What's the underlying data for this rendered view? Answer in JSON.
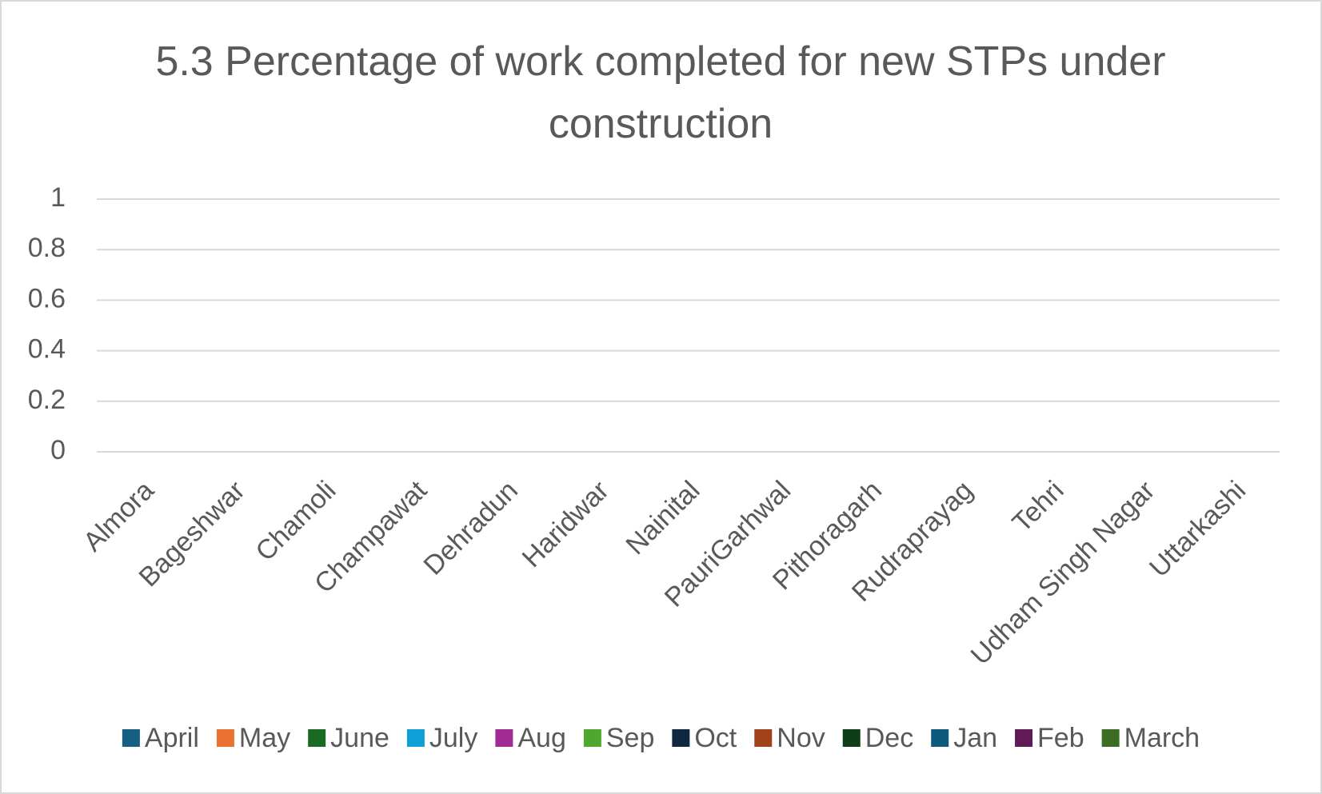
{
  "chart_data": {
    "type": "bar",
    "title": "5.3 Percentage of work completed for new STPs under construction",
    "categories": [
      "Almora",
      "Bageshwar",
      "Chamoli",
      "Champawat",
      "Dehradun",
      "Haridwar",
      "Nainital",
      "PauriGarhwal",
      "Pithoragarh",
      "Rudraprayag",
      "Tehri",
      "Udham Singh Nagar",
      "Uttarkashi"
    ],
    "series": [
      {
        "name": "April",
        "color": "#156082",
        "values": [
          null,
          null,
          null,
          null,
          null,
          null,
          null,
          null,
          null,
          null,
          null,
          null,
          null
        ]
      },
      {
        "name": "May",
        "color": "#e97132",
        "values": [
          null,
          null,
          null,
          null,
          null,
          null,
          null,
          null,
          null,
          null,
          null,
          null,
          null
        ]
      },
      {
        "name": "June",
        "color": "#196b24",
        "values": [
          null,
          null,
          null,
          null,
          null,
          null,
          null,
          null,
          null,
          null,
          null,
          null,
          null
        ]
      },
      {
        "name": "July",
        "color": "#0f9ed5",
        "values": [
          null,
          null,
          null,
          null,
          null,
          null,
          null,
          null,
          null,
          null,
          null,
          null,
          null
        ]
      },
      {
        "name": "Aug",
        "color": "#a02b93",
        "values": [
          null,
          null,
          null,
          null,
          null,
          null,
          null,
          null,
          null,
          null,
          null,
          null,
          null
        ]
      },
      {
        "name": "Sep",
        "color": "#4ea72e",
        "values": [
          null,
          null,
          null,
          null,
          null,
          null,
          null,
          null,
          null,
          null,
          null,
          null,
          null
        ]
      },
      {
        "name": "Oct",
        "color": "#0e2841",
        "values": [
          null,
          null,
          null,
          null,
          null,
          null,
          null,
          null,
          null,
          null,
          null,
          null,
          null
        ]
      },
      {
        "name": "Nov",
        "color": "#a0421a",
        "values": [
          null,
          null,
          null,
          null,
          null,
          null,
          null,
          null,
          null,
          null,
          null,
          null,
          null
        ]
      },
      {
        "name": "Dec",
        "color": "#0f3d17",
        "values": [
          null,
          null,
          null,
          null,
          null,
          null,
          null,
          null,
          null,
          null,
          null,
          null,
          null
        ]
      },
      {
        "name": "Jan",
        "color": "#0d5a7c",
        "values": [
          null,
          null,
          null,
          null,
          null,
          null,
          null,
          null,
          null,
          null,
          null,
          null,
          null
        ]
      },
      {
        "name": "Feb",
        "color": "#601a56",
        "values": [
          null,
          null,
          null,
          null,
          null,
          null,
          null,
          null,
          null,
          null,
          null,
          null,
          null
        ]
      },
      {
        "name": "March",
        "color": "#3b6e22",
        "values": [
          null,
          null,
          null,
          null,
          null,
          null,
          null,
          null,
          null,
          null,
          null,
          null,
          null
        ]
      }
    ],
    "ylim": [
      0,
      1
    ],
    "yticks": [
      0,
      0.2,
      0.4,
      0.6,
      0.8,
      1
    ],
    "grid": true,
    "legend": "bottom"
  }
}
